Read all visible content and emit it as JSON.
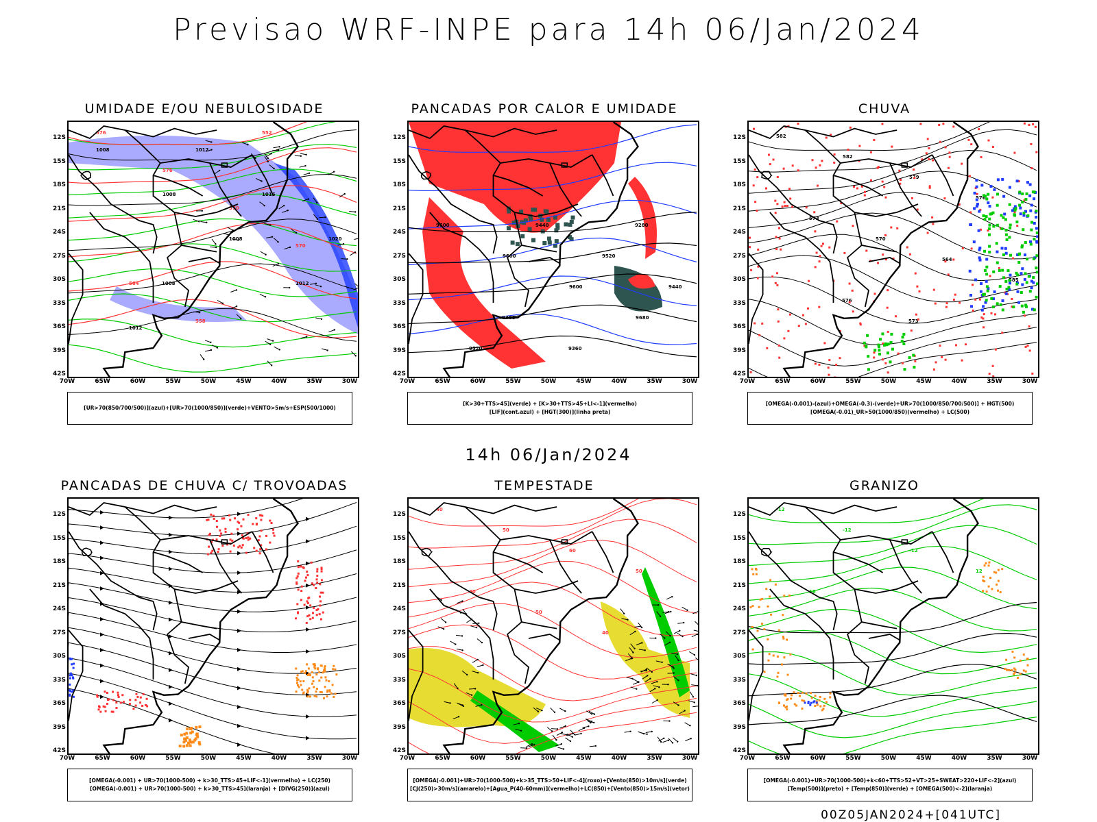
{
  "main_title": "Previsao WRF-INPE  para 14h 06/Jan/2024",
  "mid_title": "14h 06/Jan/2024",
  "footer": "00Z05JAN2024+[041UTC]",
  "lat_labels": [
    "12S",
    "15S",
    "18S",
    "21S",
    "24S",
    "27S",
    "30S",
    "33S",
    "36S",
    "39S",
    "42S"
  ],
  "lon_labels": [
    "70W",
    "65W",
    "60W",
    "55W",
    "50W",
    "45W",
    "40W",
    "35W",
    "30W"
  ],
  "panels": [
    {
      "id": "umidade",
      "title": "UMIDADE E/OU NEBULOSIDADE",
      "legend": [
        "[UR>70(850/700/500)](azul)+[UR>70(1000/850)](verde)+VENTO>5m/s+ESP(500/1000)"
      ],
      "contour_labels": [
        "1008",
        "1008",
        "1008",
        "1012",
        "1012",
        "1012",
        "1016",
        "1020",
        "1008",
        "576",
        "576",
        "570",
        "570",
        "564",
        "558",
        "552"
      ]
    },
    {
      "id": "pancadas-calor",
      "title": "PANCADAS POR CALOR E UMIDADE",
      "legend": [
        "[K>30+TTS>45](verde) + [K>30+TTS>45+LI<-1](vermelho)",
        "[LIF](cont.azul) + [HGT(300)](linha preta)"
      ],
      "contour_labels": [
        "9600",
        "9600",
        "9600",
        "9680",
        "9520",
        "9440",
        "9520",
        "9440",
        "9360",
        "9360",
        "9280"
      ]
    },
    {
      "id": "chuva",
      "title": "CHUVA",
      "legend": [
        "[OMEGA(-0.001)-(azul)+OMEGA(-0.3)-(verde)+UR>70(1000/850/700/500)] + HGT(500)",
        "[OMEGA(-0.01)_UR>50(1000/850)(vermelho) + LC(500)"
      ],
      "contour_labels": [
        "582",
        "582",
        "579",
        "576",
        "573",
        "570",
        "564",
        "585",
        "576",
        "573"
      ]
    },
    {
      "id": "trovoadas",
      "title": "PANCADAS DE CHUVA C/ TROVOADAS",
      "legend": [
        "[OMEGA(-0.001) + UR>70(1000-500) + k>30_TTS>45+LIF<-1](vermelho) + LC(250)",
        "[OMEGA(-0.001) + UR>70(1000-500) + k>30_TTS>45](laranja) + [DIVG(250)](azul)"
      ],
      "contour_labels": []
    },
    {
      "id": "tempestade",
      "title": "TEMPESTADE",
      "legend": [
        "[OMEGA(-0.001)+UR>70(1000-500)+k>35_TTS>50+LIF<-4](roxo)+[Vento(850)>10m/s](verde)",
        "[CJ(250)>30m/s](amarelo)+[Agua_P(40-60mm)](vermelho)+LC(850)+[Vento(850)>15m/s](vetor)"
      ],
      "contour_labels": [
        "40",
        "50",
        "60",
        "50",
        "40",
        "50",
        "40"
      ]
    },
    {
      "id": "granizo",
      "title": "GRANIZO",
      "legend": [
        "[OMEGA(-0.001)+UR>70(1000-500)+k<60+TTS>52+VT>25+SWEAT>220+LIF<-2](azul)",
        "[Temp(500)](preto) + [Temp(850)](verde) + [OMEGA(500)<-2](laranja)"
      ],
      "contour_labels": [
        "-12",
        "-12",
        "-12",
        "12",
        "16"
      ]
    }
  ],
  "colors": {
    "black": "#000000",
    "green": "#00cc00",
    "red": "#ff3333",
    "blue": "#1f3cff",
    "lavender": "#aaaaff",
    "dark_teal": "#2f5550",
    "yellow": "#e6dc32",
    "orange": "#ff8c1a"
  }
}
